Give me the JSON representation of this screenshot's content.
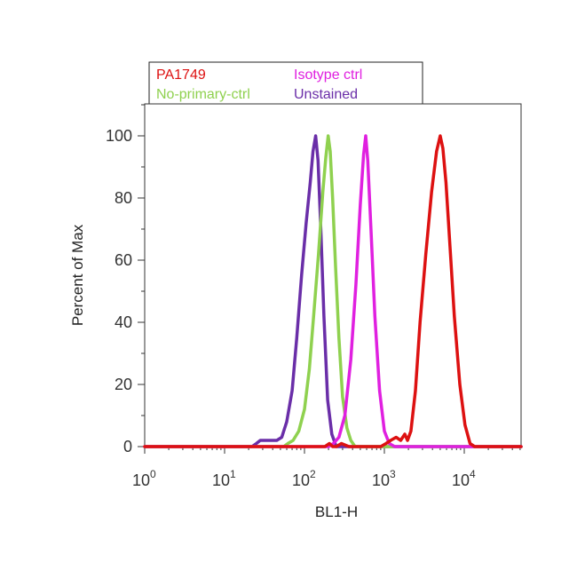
{
  "chart_data": {
    "type": "line",
    "xlabel": "BL1-H",
    "ylabel": "Percent of Max",
    "x_scale": "log",
    "xlim": [
      1,
      60000
    ],
    "ylim": [
      0,
      110
    ],
    "x_ticks": [
      {
        "base": "10",
        "exp": "0",
        "value": 1
      },
      {
        "base": "10",
        "exp": "1",
        "value": 10
      },
      {
        "base": "10",
        "exp": "2",
        "value": 100
      },
      {
        "base": "10",
        "exp": "3",
        "value": 1000
      },
      {
        "base": "10",
        "exp": "4",
        "value": 10000
      }
    ],
    "y_ticks": [
      {
        "label": "0",
        "value": 0
      },
      {
        "label": "20",
        "value": 20
      },
      {
        "label": "40",
        "value": 40
      },
      {
        "label": "60",
        "value": 60
      },
      {
        "label": "80",
        "value": 80
      },
      {
        "label": "100",
        "value": 100
      }
    ],
    "grid": false,
    "legend_position": "top-left-above-plot",
    "series": [
      {
        "name": "Unstained",
        "color": "#6a2ea8",
        "x": [
          1,
          22,
          25,
          28,
          32,
          38,
          45,
          52,
          60,
          70,
          80,
          92,
          105,
          118,
          128,
          138,
          148,
          160,
          175,
          195,
          220,
          250,
          60000
        ],
        "y": [
          0,
          0,
          1,
          2,
          2,
          2,
          2,
          3,
          8,
          18,
          35,
          55,
          72,
          85,
          95,
          100,
          92,
          70,
          42,
          15,
          4,
          0,
          0
        ]
      },
      {
        "name": "No-primary-ctrl",
        "color": "#8fd14f",
        "x": [
          1,
          55,
          62,
          72,
          85,
          100,
          115,
          130,
          150,
          170,
          185,
          198,
          210,
          225,
          245,
          270,
          300,
          340,
          380,
          430,
          60000
        ],
        "y": [
          0,
          0,
          1,
          2,
          5,
          12,
          25,
          42,
          62,
          82,
          93,
          100,
          95,
          80,
          58,
          35,
          16,
          6,
          2,
          0,
          0
        ]
      },
      {
        "name": "Isotype ctrl",
        "color": "#e020e0",
        "x": [
          1,
          200,
          230,
          270,
          320,
          380,
          440,
          500,
          550,
          585,
          620,
          680,
          760,
          870,
          1000,
          1150,
          1350,
          60000
        ],
        "y": [
          0,
          0,
          1,
          3,
          10,
          28,
          52,
          78,
          94,
          100,
          92,
          70,
          42,
          18,
          5,
          1,
          0,
          0
        ]
      },
      {
        "name": "PA1749",
        "color": "#dd1111",
        "x": [
          1,
          180,
          205,
          225,
          250,
          290,
          360,
          460,
          600,
          750,
          900,
          1050,
          1200,
          1400,
          1600,
          1800,
          1950,
          2150,
          2450,
          2800,
          3300,
          3900,
          4500,
          5000,
          5400,
          5900,
          6600,
          7500,
          8800,
          10200,
          11800,
          13500,
          15000,
          60000
        ],
        "y": [
          0,
          0,
          1,
          0,
          0,
          1,
          0,
          0,
          0,
          0,
          0,
          1,
          2,
          3,
          2,
          4,
          2,
          5,
          18,
          40,
          62,
          82,
          95,
          100,
          96,
          85,
          65,
          42,
          20,
          7,
          1,
          0,
          0,
          0
        ]
      }
    ],
    "legend": [
      {
        "label": "PA1749",
        "color": "#dd1111"
      },
      {
        "label": "Isotype ctrl",
        "color": "#e020e0"
      },
      {
        "label": "No-primary-ctrl",
        "color": "#8fd14f"
      },
      {
        "label": "Unstained",
        "color": "#6a2ea8"
      }
    ]
  }
}
